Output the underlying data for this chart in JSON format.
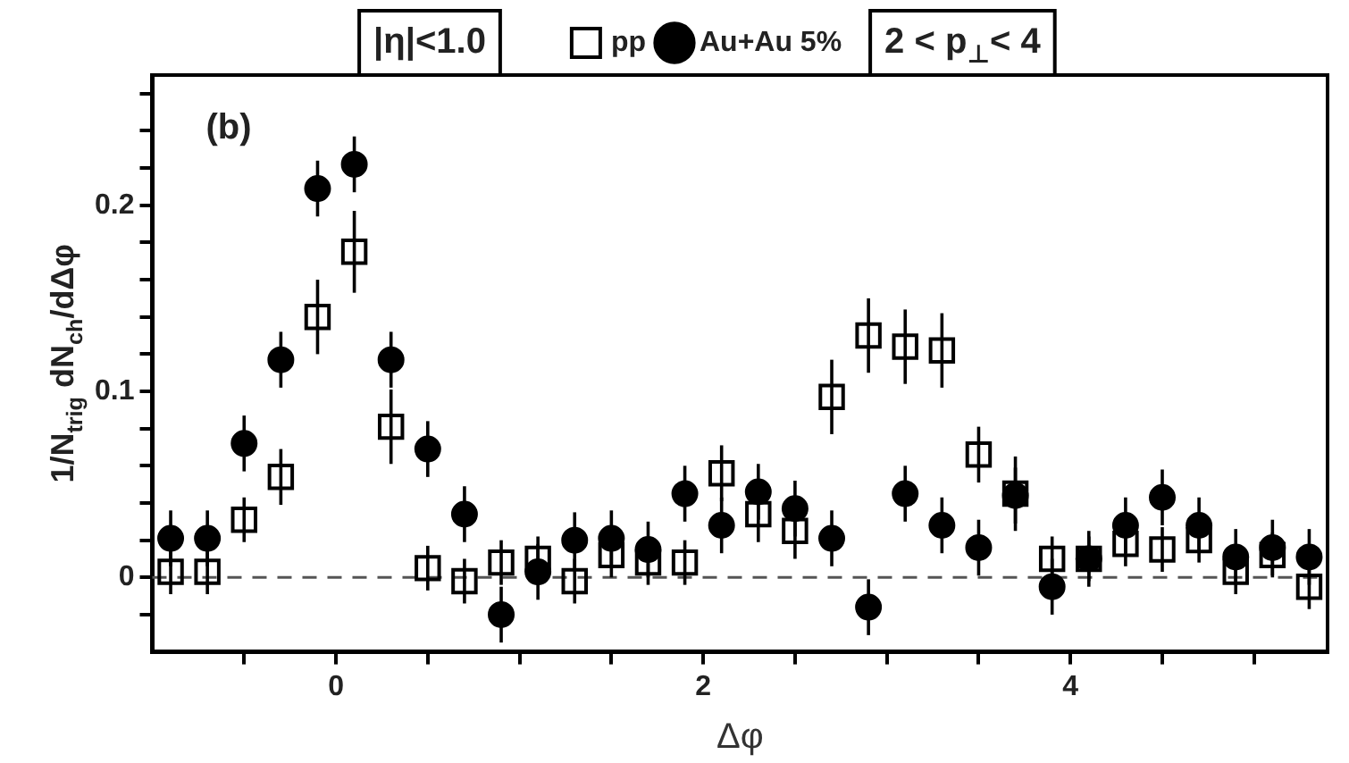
{
  "chart_data": {
    "type": "scatter",
    "xlabel": "Δφ",
    "ylabel": "1/N$_{trig}$ dN$_{ch}$/dΔφ",
    "annotations": [
      "(b)",
      "|η|<1.0",
      "2 < p$_{⊥}$< 4"
    ],
    "x": [
      -0.9,
      -0.7,
      -0.5,
      -0.3,
      -0.1,
      0.1,
      0.3,
      0.5,
      0.7,
      0.9,
      1.1,
      1.3,
      1.5,
      1.7,
      1.9,
      2.1,
      2.3,
      2.5,
      2.7,
      2.9,
      3.1,
      3.3,
      3.5,
      3.7,
      3.9,
      4.1,
      4.3,
      4.5,
      4.7,
      4.9,
      5.1,
      5.3
    ],
    "series": [
      {
        "name": "pp",
        "color": "#000000",
        "marker": "square",
        "values": [
          0.003,
          0.003,
          0.031,
          0.054,
          0.14,
          0.175,
          0.081,
          0.005,
          -0.002,
          0.008,
          0.01,
          -0.002,
          0.012,
          0.008,
          0.008,
          0.056,
          0.034,
          0.025,
          0.097,
          0.13,
          0.124,
          0.122,
          0.066,
          0.045,
          0.01,
          0.01,
          0.018,
          0.015,
          0.02,
          0.003,
          0.012,
          -0.005
        ],
        "errors": [
          0.012,
          0.012,
          0.012,
          0.015,
          0.02,
          0.022,
          0.02,
          0.012,
          0.012,
          0.012,
          0.012,
          0.012,
          0.012,
          0.012,
          0.012,
          0.015,
          0.015,
          0.015,
          0.02,
          0.02,
          0.02,
          0.02,
          0.015,
          0.02,
          0.012,
          0.012,
          0.012,
          0.012,
          0.012,
          0.012,
          0.012,
          0.012
        ]
      },
      {
        "name": "Au+Au 5%",
        "color": "#000000",
        "marker": "circle",
        "values": [
          0.021,
          0.021,
          0.072,
          0.117,
          0.209,
          0.222,
          0.117,
          0.069,
          0.034,
          -0.02,
          0.003,
          0.02,
          0.021,
          0.015,
          0.045,
          0.028,
          0.046,
          0.037,
          0.021,
          -0.016,
          0.045,
          0.028,
          0.016,
          0.044,
          -0.005,
          0.01,
          0.028,
          0.043,
          0.028,
          0.011,
          0.016,
          0.011
        ],
        "errors": [
          0.015,
          0.015,
          0.015,
          0.015,
          0.015,
          0.015,
          0.015,
          0.015,
          0.015,
          0.015,
          0.015,
          0.015,
          0.015,
          0.015,
          0.015,
          0.015,
          0.015,
          0.015,
          0.015,
          0.015,
          0.015,
          0.015,
          0.015,
          0.015,
          0.015,
          0.015,
          0.015,
          0.015,
          0.015,
          0.015,
          0.015,
          0.015
        ]
      }
    ],
    "xlim": [
      -1.0,
      5.4
    ],
    "xticks": [
      {
        "value": -0.5,
        "label": null
      },
      0,
      {
        "value": 0.5,
        "label": null
      },
      {
        "value": 1,
        "label": null
      },
      {
        "value": 1.5,
        "label": null
      },
      2,
      {
        "value": 2.5,
        "label": null
      },
      {
        "value": 3,
        "label": null
      },
      {
        "value": 3.5,
        "label": null
      },
      4,
      {
        "value": 4.5,
        "label": null
      },
      {
        "value": 5,
        "label": null
      }
    ],
    "ylim": [
      -0.04,
      0.27
    ],
    "yticks": [
      {
        "value": -0.02,
        "label": null
      },
      0,
      {
        "value": 0.02,
        "label": null
      },
      {
        "value": 0.04,
        "label": null
      },
      {
        "value": 0.06,
        "label": null
      },
      {
        "value": 0.08,
        "label": null
      },
      0.1,
      {
        "value": 0.12,
        "label": null
      },
      {
        "value": 0.14,
        "label": null
      },
      {
        "value": 0.16,
        "label": null
      },
      {
        "value": 0.18,
        "label": null
      },
      0.2,
      {
        "value": 0.22,
        "label": null
      },
      {
        "value": 0.24,
        "label": null
      },
      {
        "value": 0.26,
        "label": null
      }
    ],
    "ref_lines": [
      {
        "axis": "y",
        "value": 0,
        "line_style": "dashed",
        "color": "#555555"
      }
    ],
    "legend": "top",
    "grid": false
  }
}
